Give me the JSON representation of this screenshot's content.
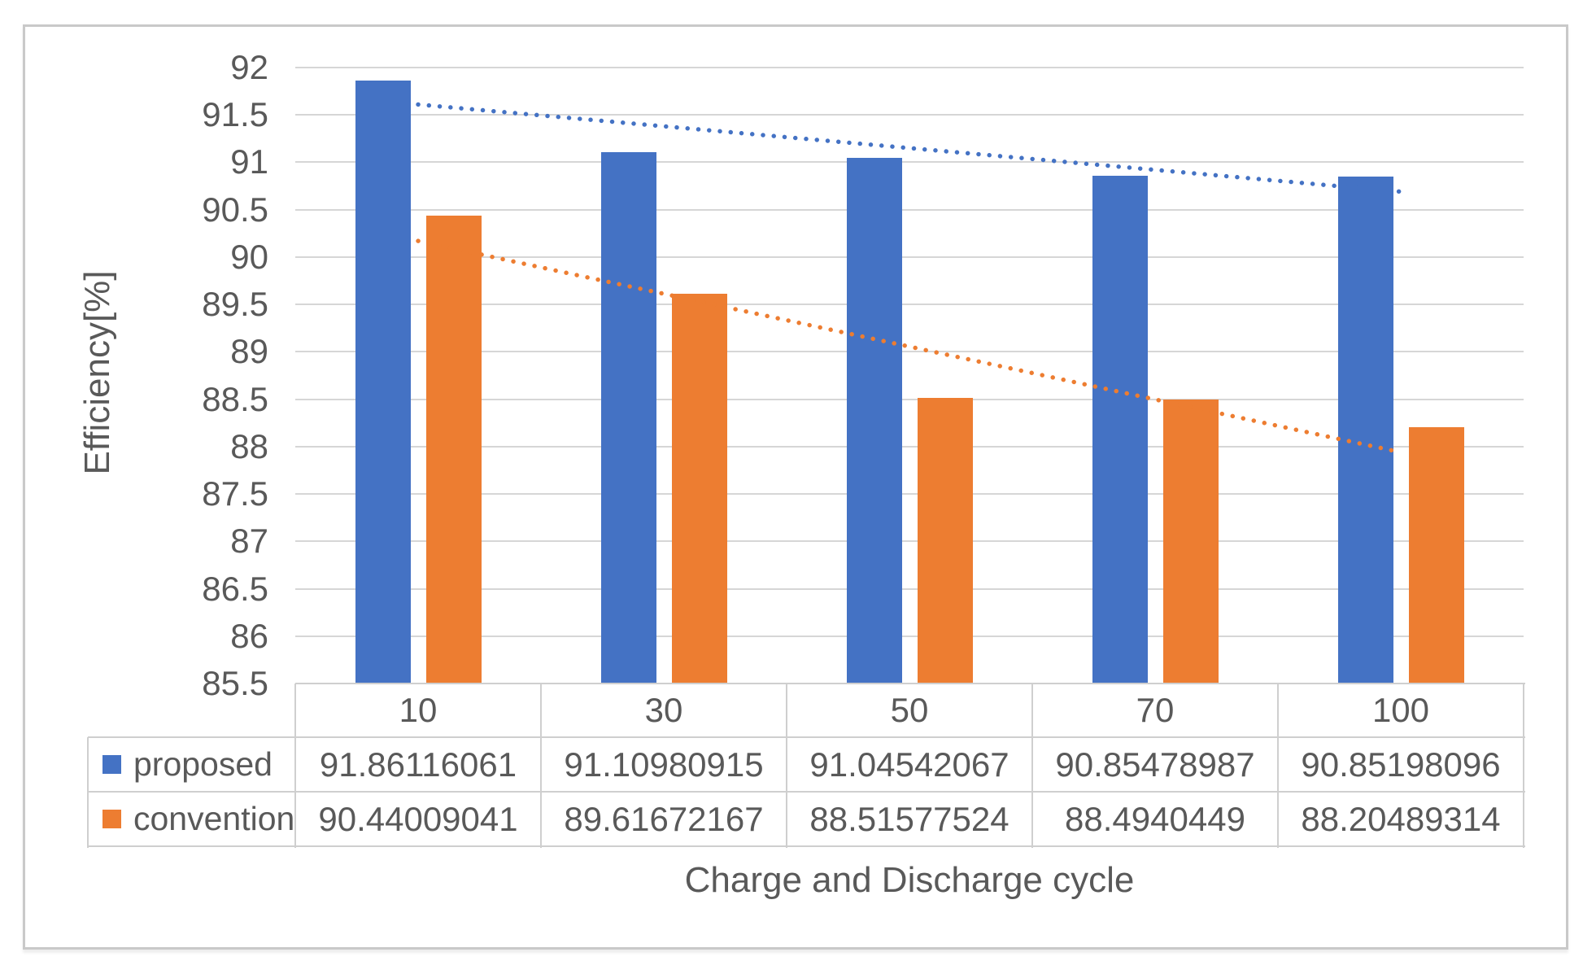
{
  "chart_data": {
    "type": "bar",
    "title": "",
    "categories": [
      "10",
      "30",
      "50",
      "70",
      "100"
    ],
    "series": [
      {
        "name": "proposed",
        "color": "#4472C4",
        "values": [
          91.86116061,
          91.10980915,
          91.04542067,
          90.85478987,
          90.85198096
        ]
      },
      {
        "name": "convention",
        "color": "#ED7D31",
        "values": [
          90.44009041,
          89.61672167,
          88.51577524,
          88.4940449,
          88.20489314
        ]
      }
    ],
    "trendlines": [
      {
        "series": "proposed",
        "color": "#4472C4",
        "style": "dotted",
        "start_value": 91.61,
        "end_value": 90.69
      },
      {
        "series": "convention",
        "color": "#ED7D31",
        "style": "dotted",
        "start_value": 90.17,
        "end_value": 87.94
      }
    ],
    "xlabel": "Charge and Discharge cycle",
    "ylabel": "Efficiency[%]",
    "ylim": [
      85.5,
      92
    ],
    "ytick_step": 0.5,
    "grid": true,
    "legend_position": "data-table-left"
  },
  "colors": {
    "grid": "#d6d6d6",
    "table_border": "#cfcfcf",
    "text": "#595959",
    "frame": "#c9c9c9"
  }
}
